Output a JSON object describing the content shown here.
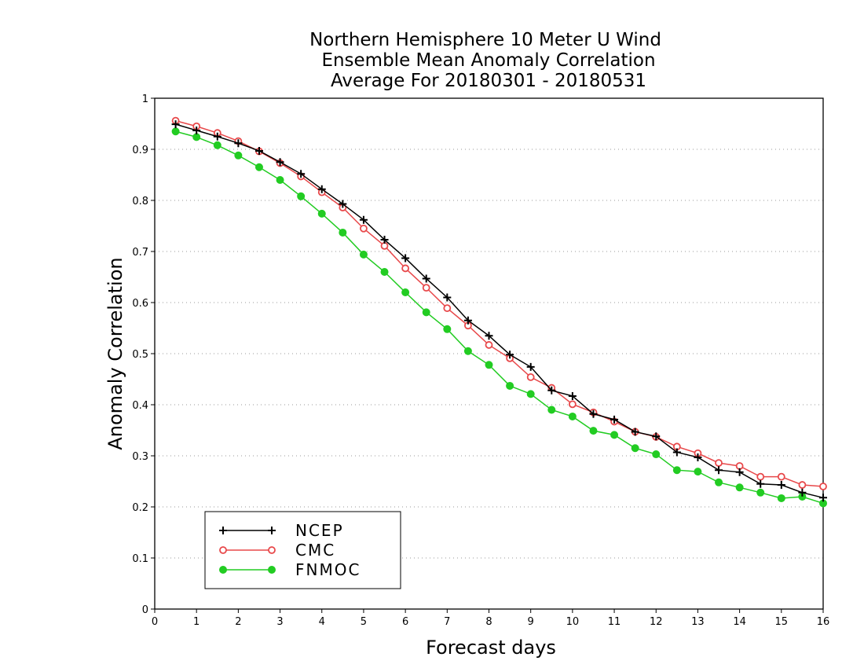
{
  "chart_data": {
    "type": "line",
    "title": [
      "Northern Hemisphere 10 Meter U Wind",
      "Ensemble Mean Anomaly Correlation",
      "Average For 20180301 - 20180531"
    ],
    "xlabel": "Forecast days",
    "ylabel": "Anomaly Correlation",
    "xlim": [
      0,
      16
    ],
    "ylim": [
      0,
      1
    ],
    "x_ticks": [
      "0",
      "1",
      "2",
      "3",
      "4",
      "5",
      "6",
      "7",
      "8",
      "9",
      "10",
      "11",
      "12",
      "13",
      "14",
      "15",
      "16"
    ],
    "y_ticks": [
      "0",
      "0.1",
      "0.2",
      "0.3",
      "0.4",
      "0.5",
      "0.6",
      "0.7",
      "0.8",
      "0.9",
      "1"
    ],
    "grid": "horizontal dotted",
    "legend_position": "bottom-left",
    "x": [
      0.5,
      1,
      1.5,
      2,
      2.5,
      3,
      3.5,
      4,
      4.5,
      5,
      5.5,
      6,
      6.5,
      7,
      7.5,
      8,
      8.5,
      9,
      9.5,
      10,
      10.5,
      11,
      11.5,
      12,
      12.5,
      13,
      13.5,
      14,
      14.5,
      15,
      15.5,
      16
    ],
    "series": [
      {
        "name": "NCEP",
        "color": "#000000",
        "marker": "plus",
        "values": [
          0.949,
          0.937,
          0.925,
          0.912,
          0.897,
          0.875,
          0.852,
          0.822,
          0.793,
          0.762,
          0.723,
          0.687,
          0.647,
          0.61,
          0.565,
          0.535,
          0.498,
          0.474,
          0.428,
          0.417,
          0.382,
          0.371,
          0.347,
          0.338,
          0.307,
          0.297,
          0.272,
          0.268,
          0.245,
          0.243,
          0.228,
          0.218
        ]
      },
      {
        "name": "CMC",
        "color": "#e8484a",
        "marker": "open-circle",
        "values": [
          0.956,
          0.945,
          0.932,
          0.916,
          0.896,
          0.873,
          0.847,
          0.816,
          0.786,
          0.745,
          0.711,
          0.667,
          0.629,
          0.589,
          0.555,
          0.517,
          0.491,
          0.454,
          0.433,
          0.401,
          0.385,
          0.367,
          0.347,
          0.337,
          0.318,
          0.305,
          0.286,
          0.28,
          0.259,
          0.259,
          0.243,
          0.24
        ]
      },
      {
        "name": "FNMOC",
        "color": "#22cc22",
        "marker": "filled-circle",
        "values": [
          0.935,
          0.924,
          0.908,
          0.888,
          0.865,
          0.84,
          0.808,
          0.774,
          0.737,
          0.694,
          0.66,
          0.62,
          0.581,
          0.548,
          0.505,
          0.478,
          0.437,
          0.421,
          0.39,
          0.377,
          0.349,
          0.341,
          0.315,
          0.303,
          0.272,
          0.269,
          0.248,
          0.238,
          0.228,
          0.217,
          0.22,
          0.207
        ]
      }
    ]
  }
}
